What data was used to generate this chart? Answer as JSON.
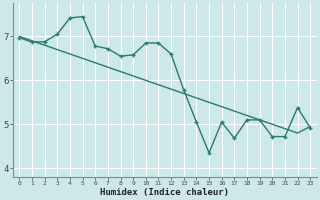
{
  "xlabel": "Humidex (Indice chaleur)",
  "ylabel": "",
  "bg_color": "#cce8e8",
  "grid_color": "#ffffff",
  "line_color": "#2a7a70",
  "x_values": [
    0,
    1,
    2,
    3,
    4,
    5,
    6,
    7,
    8,
    9,
    10,
    11,
    12,
    13,
    14,
    15,
    16,
    17,
    18,
    19,
    20,
    21,
    22,
    23
  ],
  "y_jagged": [
    6.97,
    6.87,
    6.88,
    7.05,
    7.42,
    7.45,
    6.78,
    6.72,
    6.55,
    6.58,
    6.85,
    6.85,
    6.6,
    5.78,
    5.05,
    4.35,
    5.05,
    4.68,
    5.1,
    5.1,
    4.72,
    4.72,
    5.38,
    4.92
  ],
  "y_trend": [
    7.0,
    6.9,
    6.8,
    6.7,
    6.6,
    6.5,
    6.4,
    6.3,
    6.2,
    6.1,
    6.0,
    5.9,
    5.8,
    5.7,
    5.6,
    5.5,
    5.4,
    5.3,
    5.2,
    5.1,
    5.0,
    4.9,
    4.8,
    4.95
  ],
  "ylim": [
    3.8,
    7.75
  ],
  "xlim": [
    -0.5,
    23.5
  ],
  "yticks": [
    4,
    5,
    6,
    7
  ],
  "xticks": [
    0,
    1,
    2,
    3,
    4,
    5,
    6,
    7,
    8,
    9,
    10,
    11,
    12,
    13,
    14,
    15,
    16,
    17,
    18,
    19,
    20,
    21,
    22,
    23
  ]
}
